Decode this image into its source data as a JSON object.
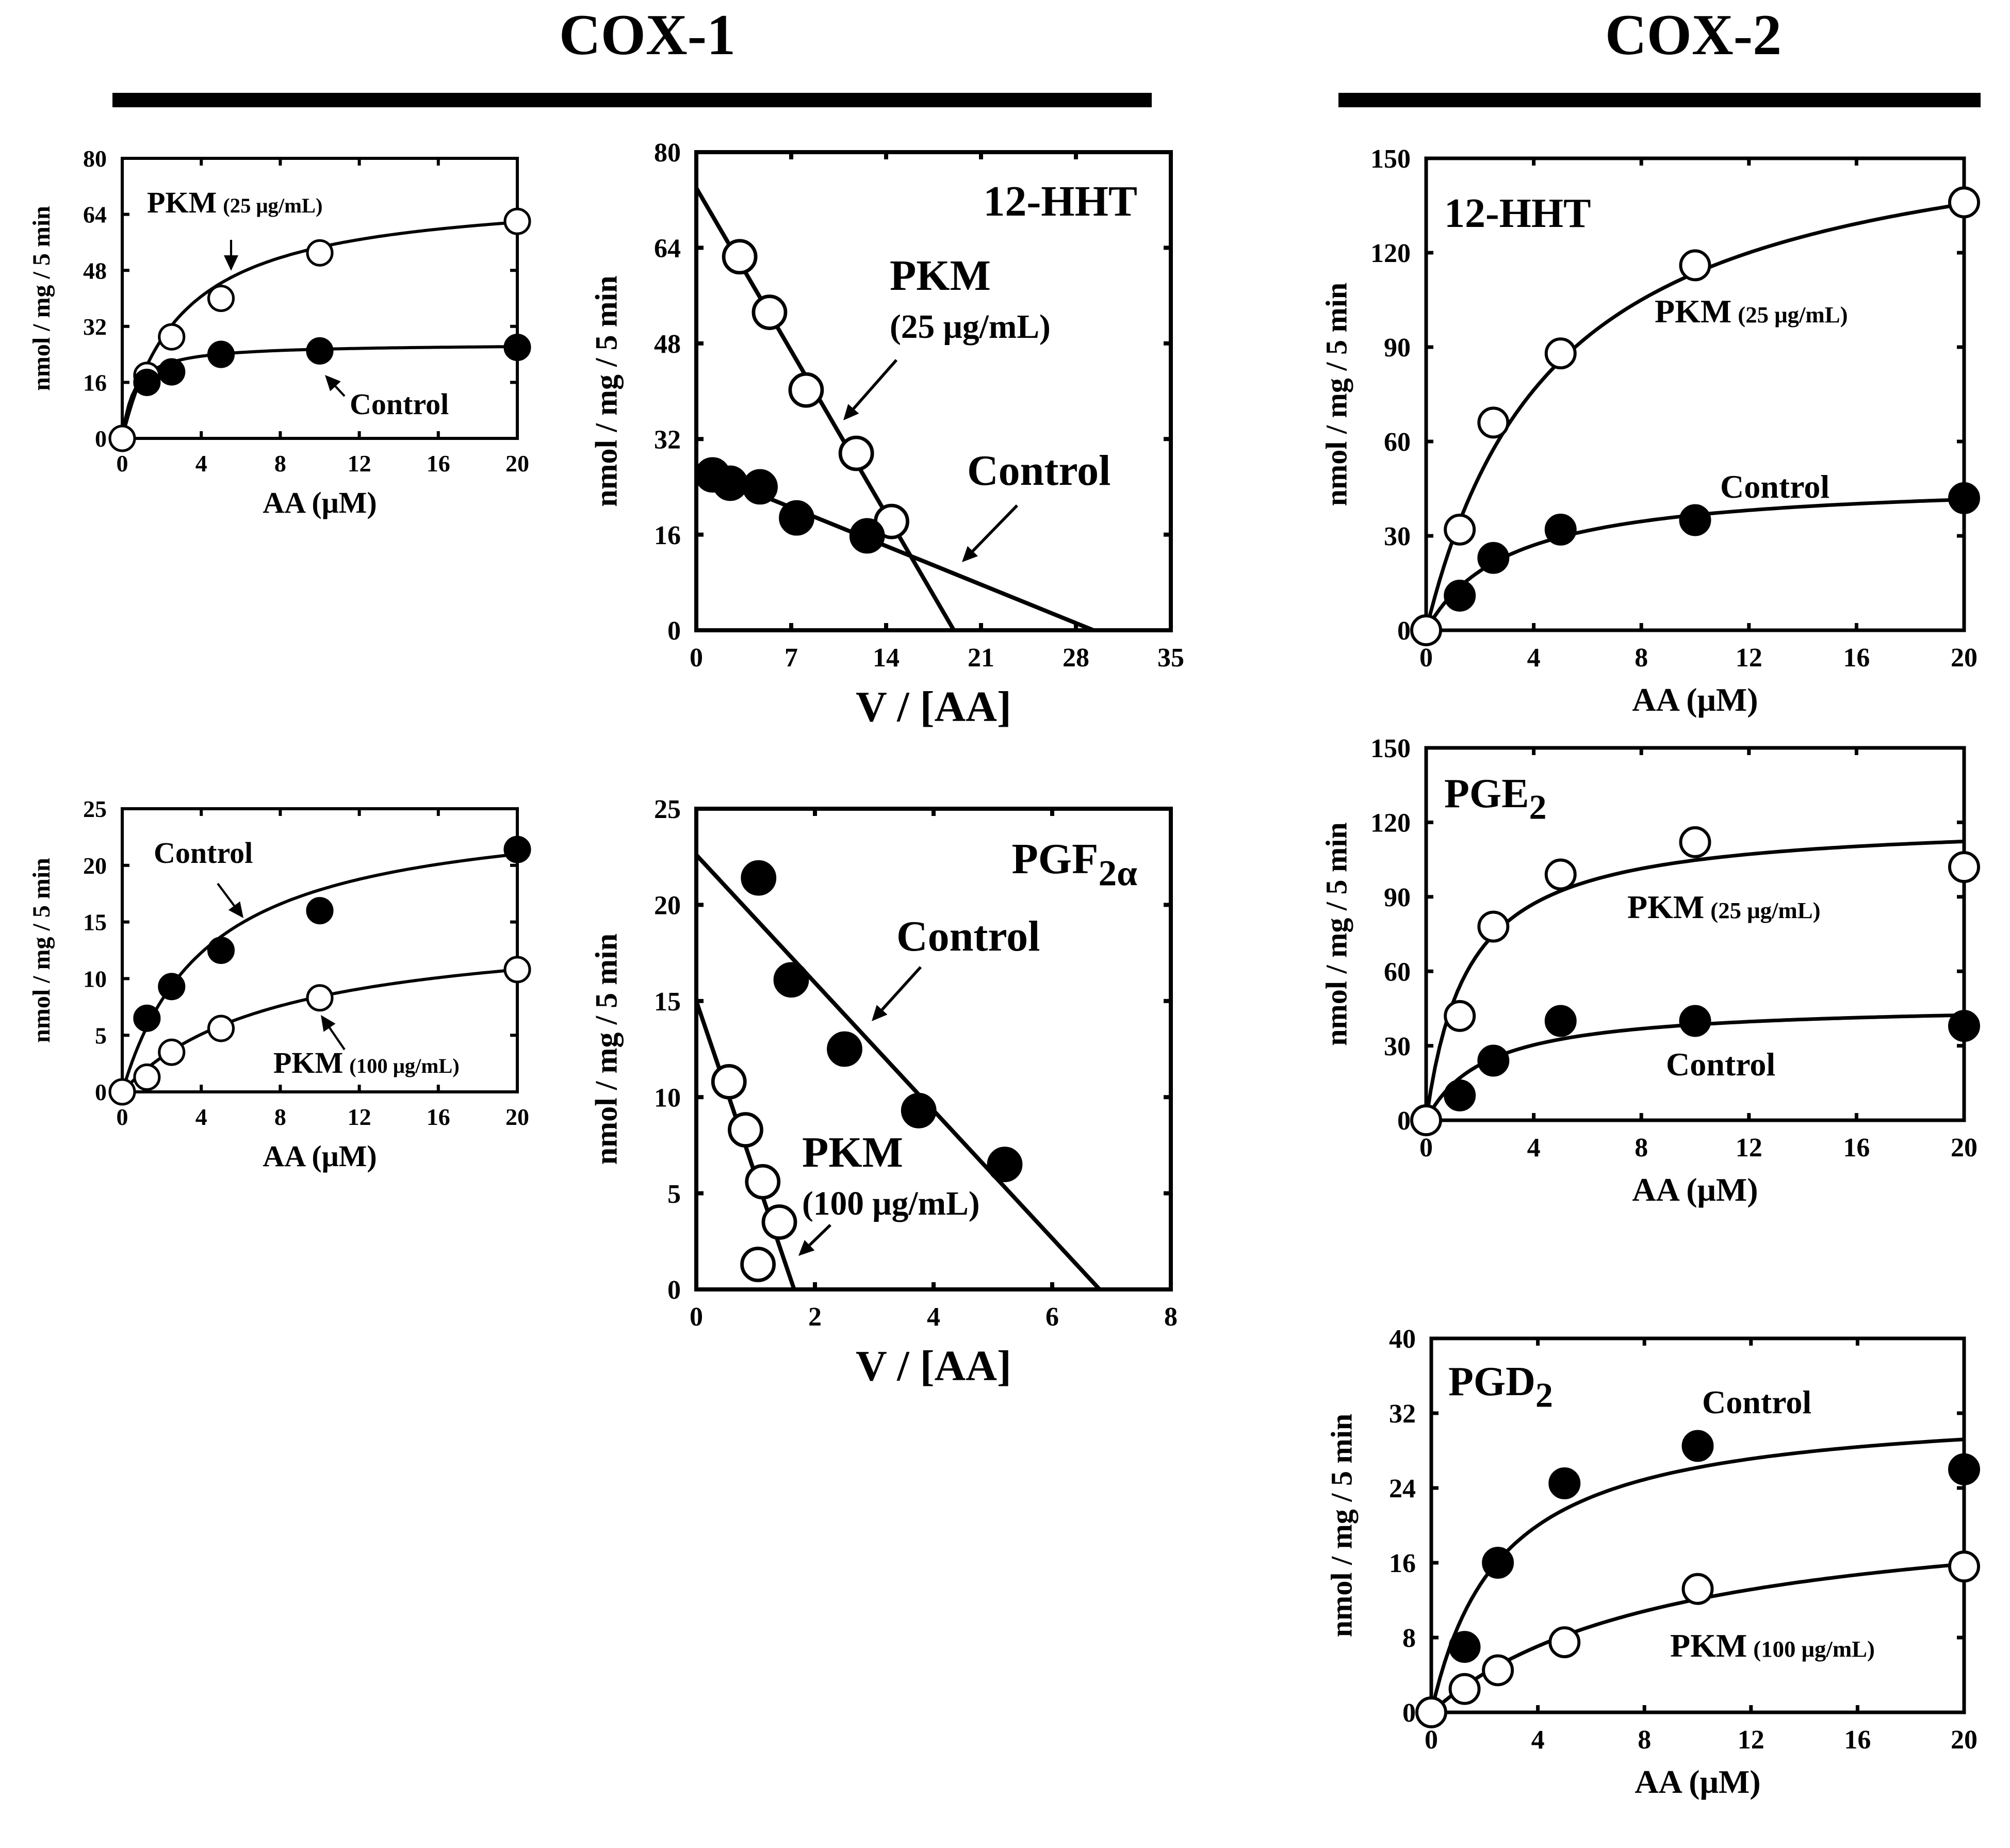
{
  "figure": {
    "group_labels": {
      "cox1": "COX-1",
      "cox2": "COX-2"
    }
  },
  "chart_data": [
    {
      "id": "cox1-hht-mm",
      "type": "scatter",
      "fit": "michaelis-menten",
      "title": "",
      "xlabel": "AA (μM)",
      "ylabel": "nmol / mg / 5 min",
      "xlim": [
        0,
        20
      ],
      "ylim": [
        0,
        80
      ],
      "xticks": [
        0,
        4,
        8,
        12,
        16,
        20
      ],
      "yticks": [
        0,
        16,
        32,
        48,
        64,
        80
      ],
      "series": [
        {
          "name": "PKM",
          "conc": "(25 μg/mL)",
          "marker": "open",
          "x": [
            0,
            1.25,
            2.5,
            5,
            10,
            20
          ],
          "y": [
            0,
            18,
            29,
            40,
            53,
            62
          ],
          "fit_params": {
            "vmax": 71,
            "km": 3
          }
        },
        {
          "name": "Control",
          "conc": "",
          "marker": "filled",
          "x": [
            1.25,
            2.5,
            5,
            10,
            20
          ],
          "y": [
            16,
            19,
            24,
            25,
            26
          ],
          "fit_params": {
            "vmax": 27,
            "km": 0.6
          }
        }
      ],
      "annotations": [
        {
          "series": 0,
          "text": "PKM",
          "sub": "(25 μg/mL)"
        },
        {
          "series": 1,
          "text": "Control",
          "sub": ""
        }
      ]
    },
    {
      "id": "cox1-hht-eh",
      "type": "scatter",
      "fit": "linear",
      "title": "12-HHT",
      "xlabel": "V / [AA]",
      "ylabel": "nmol / mg / 5 min",
      "xlim": [
        0,
        35
      ],
      "ylim": [
        0,
        80
      ],
      "xticks": [
        0,
        7,
        14,
        21,
        28,
        35
      ],
      "yticks": [
        0,
        16,
        32,
        48,
        64,
        80
      ],
      "series": [
        {
          "name": "PKM",
          "conc": "(25 μg/mL)",
          "marker": "open",
          "x": [
            3.2,
            5.4,
            8.1,
            11.8,
            14.4
          ],
          "y": [
            62.5,
            53.2,
            40.2,
            29.6,
            18.2
          ],
          "line": {
            "x0": 0,
            "y0": 74,
            "x1": 19,
            "y1": 0
          }
        },
        {
          "name": "Control",
          "conc": "",
          "marker": "filled",
          "x": [
            1.2,
            2.5,
            4.7,
            7.4,
            12.6
          ],
          "y": [
            26,
            24.6,
            24,
            18.8,
            15.8
          ],
          "line": {
            "x0": 0,
            "y0": 27,
            "x1": 29.3,
            "y1": 0
          }
        }
      ],
      "annotations": [
        {
          "series": 0,
          "text": "PKM",
          "sub": "(25 μg/mL)"
        },
        {
          "series": 1,
          "text": "Control",
          "sub": ""
        }
      ]
    },
    {
      "id": "cox1-pgf-mm",
      "type": "scatter",
      "fit": "michaelis-menten",
      "title": "",
      "xlabel": "AA (μM)",
      "ylabel": "nmol / mg / 5 min",
      "xlim": [
        0,
        20
      ],
      "ylim": [
        0,
        25
      ],
      "xticks": [
        0,
        4,
        8,
        12,
        16,
        20
      ],
      "yticks": [
        0,
        5,
        10,
        15,
        20,
        25
      ],
      "series": [
        {
          "name": "Control",
          "conc": "",
          "marker": "filled",
          "x": [
            1.25,
            2.5,
            5,
            10,
            20
          ],
          "y": [
            6.5,
            9.3,
            12.5,
            16,
            21.4
          ],
          "fit_params": {
            "vmax": 25.5,
            "km": 4.3
          }
        },
        {
          "name": "PKM",
          "conc": "(100 μg/mL)",
          "marker": "open",
          "x": [
            0,
            1.25,
            2.5,
            5,
            10,
            20
          ],
          "y": [
            0,
            1.3,
            3.5,
            5.6,
            8.3,
            10.8
          ],
          "fit_params": {
            "vmax": 15,
            "km": 7.8
          }
        }
      ],
      "annotations": [
        {
          "series": 0,
          "text": "Control",
          "sub": ""
        },
        {
          "series": 1,
          "text": "PKM",
          "sub": "(100 μg/mL)"
        }
      ]
    },
    {
      "id": "cox1-pgf-eh",
      "type": "scatter",
      "fit": "linear",
      "title": "PGF",
      "title_sub": "2α",
      "xlabel": "V / [AA]",
      "ylabel": "nmol / mg / 5 min",
      "xlim": [
        0,
        8
      ],
      "ylim": [
        0,
        25
      ],
      "xticks": [
        0,
        2,
        4,
        6,
        8
      ],
      "yticks": [
        0,
        5,
        10,
        15,
        20,
        25
      ],
      "series": [
        {
          "name": "Control",
          "conc": "",
          "marker": "filled",
          "x": [
            1.05,
            1.6,
            2.5,
            3.75,
            5.2
          ],
          "y": [
            21.4,
            16.1,
            12.5,
            9.3,
            6.5
          ],
          "line": {
            "x0": 0,
            "y0": 22.6,
            "x1": 6.8,
            "y1": 0
          }
        },
        {
          "name": "PKM",
          "conc": "(100 μg/mL)",
          "marker": "open",
          "x": [
            0.55,
            0.83,
            1.12,
            1.4,
            1.04
          ],
          "y": [
            10.8,
            8.3,
            5.6,
            3.5,
            1.3
          ],
          "line": {
            "x0": 0,
            "y0": 15,
            "x1": 1.65,
            "y1": 0
          }
        }
      ],
      "annotations": [
        {
          "series": 0,
          "text": "Control",
          "sub": ""
        },
        {
          "series": 1,
          "text": "PKM",
          "sub": "(100 μg/mL)"
        }
      ]
    },
    {
      "id": "cox2-hht",
      "type": "scatter",
      "fit": "michaelis-menten",
      "title": "12-HHT",
      "xlabel": "AA (μM)",
      "ylabel": "nmol / mg / 5 min",
      "xlim": [
        0,
        20
      ],
      "ylim": [
        0,
        150
      ],
      "xticks": [
        0,
        4,
        8,
        12,
        16,
        20
      ],
      "yticks": [
        0,
        30,
        60,
        90,
        120,
        150
      ],
      "series": [
        {
          "name": "PKM",
          "conc": "(25 μg/mL)",
          "marker": "open",
          "x": [
            0,
            1.25,
            2.5,
            5,
            10,
            20
          ],
          "y": [
            0,
            32,
            66,
            88,
            116,
            136
          ],
          "fit_params": {
            "vmax": 168,
            "km": 4.8
          }
        },
        {
          "name": "Control",
          "conc": "",
          "marker": "filled",
          "x": [
            1.25,
            2.5,
            5,
            10,
            20
          ],
          "y": [
            11,
            23,
            32,
            35,
            42
          ],
          "fit_params": {
            "vmax": 48,
            "km": 3.1
          }
        }
      ],
      "annotations": [
        {
          "series": 0,
          "text": "PKM",
          "sub": "(25 μg/mL)"
        },
        {
          "series": 1,
          "text": "Control",
          "sub": ""
        }
      ]
    },
    {
      "id": "cox2-pge",
      "type": "scatter",
      "fit": "michaelis-menten",
      "title": "PGE",
      "title_sub": "2",
      "xlabel": "AA (μM)",
      "ylabel": "nmol / mg / 5 min",
      "xlim": [
        0,
        20
      ],
      "ylim": [
        0,
        150
      ],
      "xticks": [
        0,
        4,
        8,
        12,
        16,
        20
      ],
      "yticks": [
        0,
        30,
        60,
        90,
        120,
        150
      ],
      "series": [
        {
          "name": "PKM",
          "conc": "(25 μg/mL)",
          "marker": "open",
          "x": [
            0,
            1.25,
            2.5,
            5,
            10,
            20
          ],
          "y": [
            0,
            42,
            78,
            99,
            112,
            102
          ],
          "fit_params": {
            "vmax": 121,
            "km": 1.55
          }
        },
        {
          "name": "Control",
          "conc": "",
          "marker": "filled",
          "x": [
            1.25,
            2.5,
            5,
            10,
            20
          ],
          "y": [
            10,
            24,
            40,
            40,
            38
          ],
          "fit_params": {
            "vmax": 47,
            "km": 2.2
          }
        }
      ],
      "annotations": [
        {
          "series": 0,
          "text": "PKM",
          "sub": "(25 μg/mL)"
        },
        {
          "series": 1,
          "text": "Control",
          "sub": ""
        }
      ]
    },
    {
      "id": "cox2-pgd",
      "type": "scatter",
      "fit": "michaelis-menten",
      "title": "PGD",
      "title_sub": "2",
      "xlabel": "AA (μM)",
      "ylabel": "nmol / mg / 5 min",
      "xlim": [
        0,
        20
      ],
      "ylim": [
        0,
        40
      ],
      "xticks": [
        0,
        4,
        8,
        12,
        16,
        20
      ],
      "yticks": [
        0,
        8,
        16,
        24,
        32,
        40
      ],
      "series": [
        {
          "name": "Control",
          "conc": "",
          "marker": "filled",
          "x": [
            1.25,
            2.5,
            5,
            10,
            20
          ],
          "y": [
            7,
            16,
            24.5,
            28.5,
            26
          ],
          "fit_params": {
            "vmax": 33,
            "km": 2.6
          }
        },
        {
          "name": "PKM",
          "conc": "(100 μg/mL)",
          "marker": "open",
          "x": [
            0,
            1.25,
            2.5,
            5,
            10,
            20
          ],
          "y": [
            0,
            2.5,
            4.5,
            7.5,
            13.2,
            15.6
          ],
          "fit_params": {
            "vmax": 23,
            "km": 9
          }
        }
      ],
      "annotations": [
        {
          "series": 0,
          "text": "Control",
          "sub": ""
        },
        {
          "series": 1,
          "text": "PKM",
          "sub": "(100 μg/mL)"
        }
      ]
    }
  ]
}
